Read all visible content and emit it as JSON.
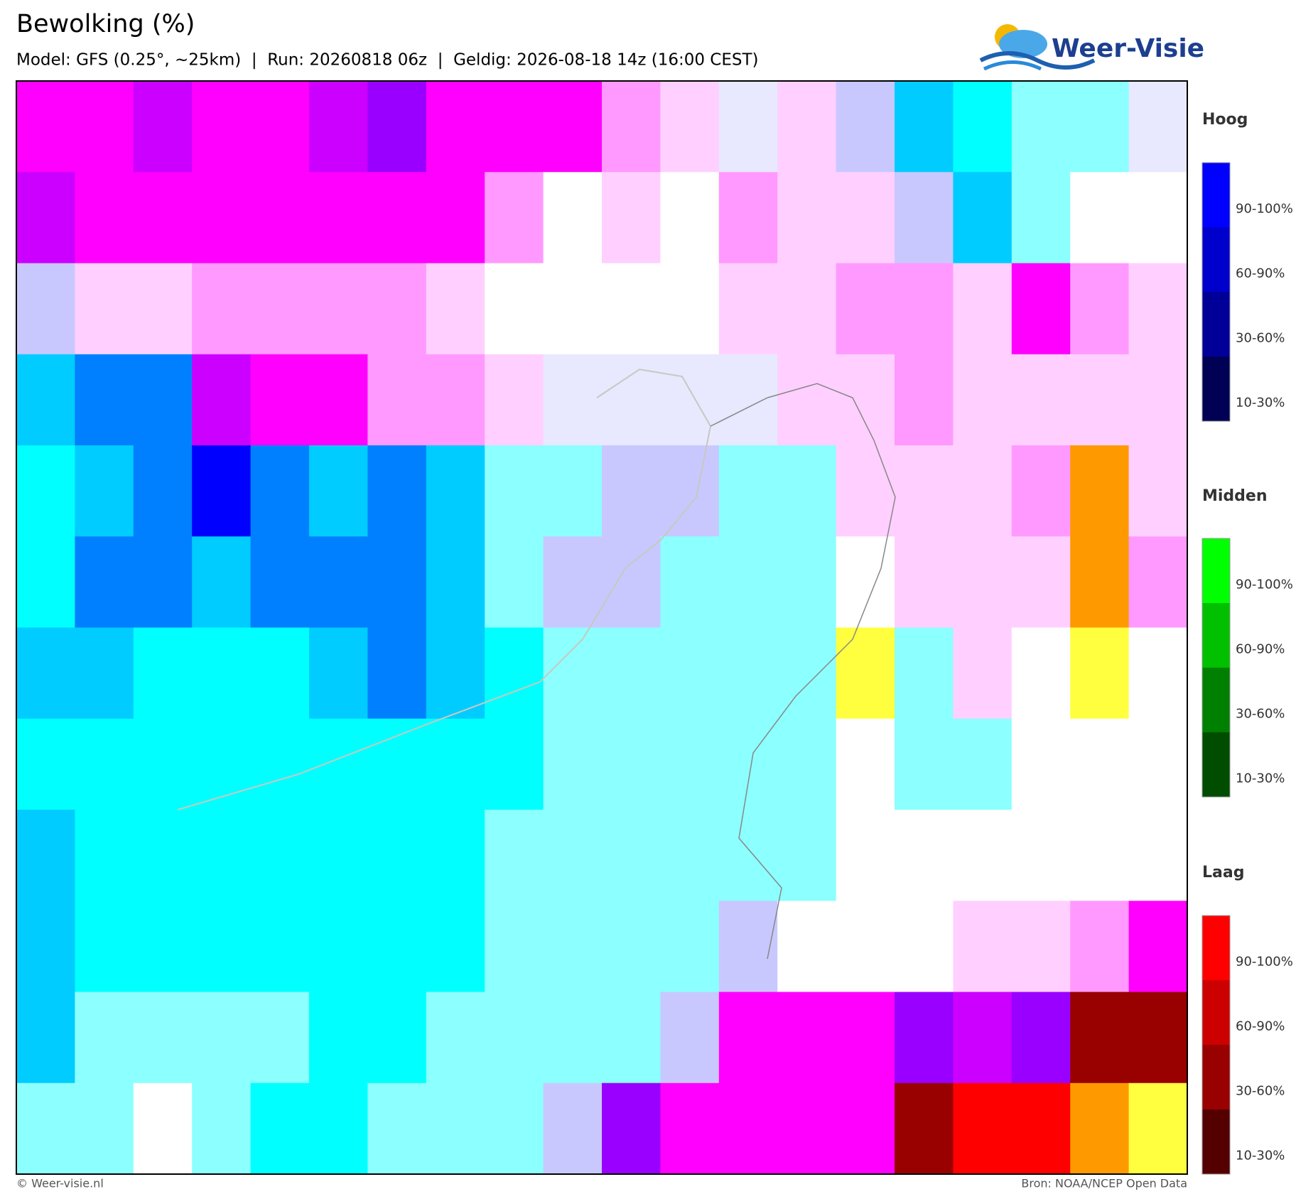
{
  "header": {
    "title": "Bewolking (%)",
    "subtitle": "Model: GFS (0.25°, ~25km)  |  Run: 20260818 06z  |  Geldig: 2026-08-18 14z (16:00 CEST)"
  },
  "logo": {
    "text": "Weer-Visie"
  },
  "legends": [
    {
      "title": "Hoog",
      "labels": [
        "90-100%",
        "60-90%",
        "30-60%",
        "10-30%"
      ]
    },
    {
      "title": "Midden",
      "labels": [
        "90-100%",
        "60-90%",
        "30-60%",
        "10-30%"
      ]
    },
    {
      "title": "Laag",
      "labels": [
        "90-100%",
        "60-90%",
        "30-60%",
        "10-30%"
      ]
    }
  ],
  "footer": {
    "left": "© Weer-visie.nl",
    "right": "Bron: NOAA/NCEP Open Data"
  }
}
